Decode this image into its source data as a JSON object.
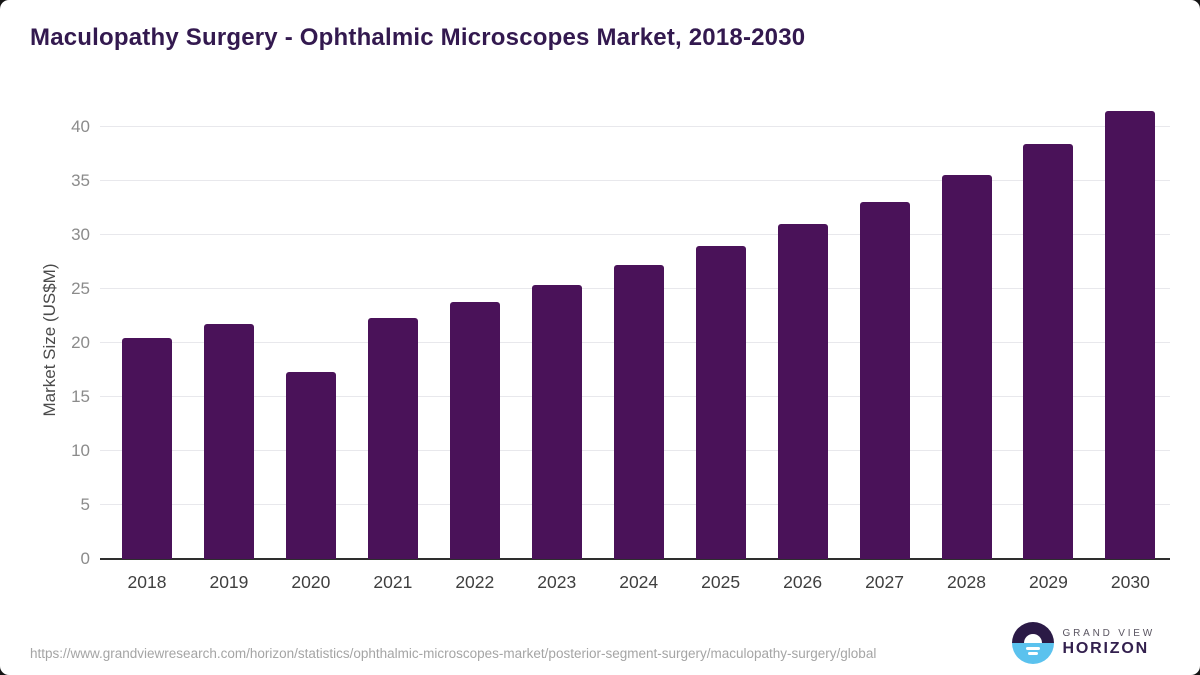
{
  "title": "Maculopathy Surgery - Ophthalmic Microscopes Market, 2018-2030",
  "chart_data": {
    "type": "bar",
    "categories": [
      "2018",
      "2019",
      "2020",
      "2021",
      "2022",
      "2023",
      "2024",
      "2025",
      "2026",
      "2027",
      "2028",
      "2029",
      "2030"
    ],
    "values": [
      20.5,
      21.8,
      17.3,
      22.3,
      23.8,
      25.4,
      27.2,
      29.0,
      31.0,
      33.1,
      35.6,
      38.4,
      41.5
    ],
    "title": "Maculopathy Surgery - Ophthalmic Microscopes Market, 2018-2030",
    "xlabel": "",
    "ylabel": "Market Size (US$M)",
    "ylim": [
      0,
      42.6
    ],
    "yticks": [
      0,
      5,
      10,
      15,
      20,
      25,
      30,
      35,
      40
    ],
    "grid": true,
    "legend": "none",
    "bar_color": "#4a1259"
  },
  "footer": {
    "source_url": "https://www.grandviewresearch.com/horizon/statistics/ophthalmic-microscopes-market/posterior-segment-surgery/maculopathy-surgery/global",
    "brand_line1": "GRAND VIEW",
    "brand_line2": "HORIZON"
  },
  "colors": {
    "title_text": "#33194f",
    "bar": "#4a1259",
    "gridline": "#e8e8ec",
    "axis_line": "#2e2e2e",
    "tick_text": "#8b8b8b",
    "x_tick_text": "#3f3f3f",
    "source_text": "#a5a5a5",
    "logo_top_half": "#2b1a46",
    "logo_bottom_half": "#5bc2ee",
    "page_corner_bg": "#141414"
  }
}
